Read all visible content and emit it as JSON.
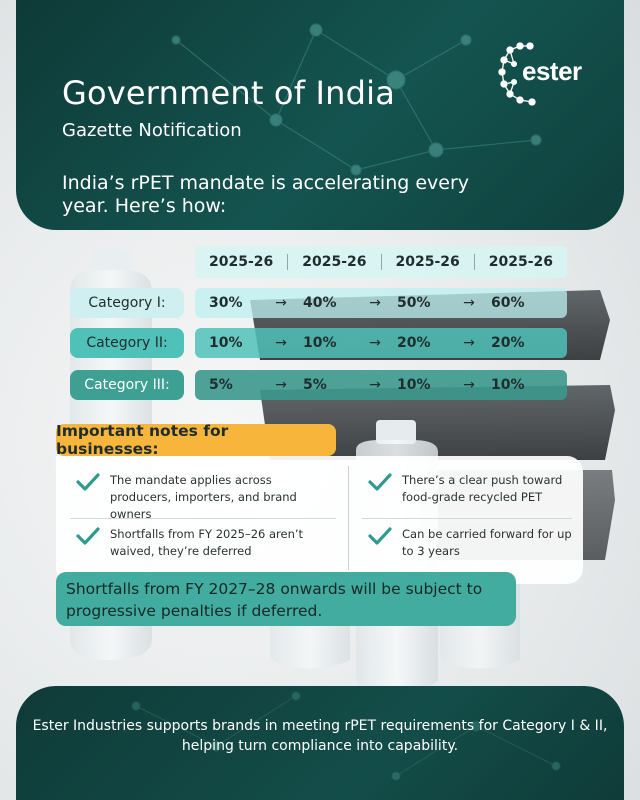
{
  "header": {
    "title": "Government of India",
    "subtitle": "Gazette Notification",
    "intro": "India’s rPET mandate is accelerating every year. Here’s how:",
    "logo_text": "ester"
  },
  "table": {
    "years": [
      "2025-26",
      "2025-26",
      "2025-26",
      "2025-26"
    ],
    "arrow": "→",
    "rows": [
      {
        "label": "Category I:",
        "values": [
          "30%",
          "40%",
          "50%",
          "60%"
        ]
      },
      {
        "label": "Category II:",
        "values": [
          "10%",
          "10%",
          "20%",
          "20%"
        ]
      },
      {
        "label": "Category III:",
        "values": [
          "5%",
          "5%",
          "10%",
          "10%"
        ]
      }
    ]
  },
  "notes": {
    "heading": "Important notes for businesses:",
    "items": [
      "The mandate applies across producers, importers, and brand owners",
      "There’s a clear push toward food-grade recycled PET",
      "Shortfalls from FY 2025–26 aren’t waived, they’re deferred",
      "Can be carried forward for up to 3 years"
    ],
    "penalty": "Shortfalls from FY 2027–28 onwards will be subject to progressive penalties if deferred."
  },
  "footer": {
    "text": "Ester Industries supports brands in meeting rPET requirements for Category I & II, helping turn compliance into capability."
  },
  "colors": {
    "header_bg": "#145450",
    "accent_teal": "#4fc1b8",
    "dark_teal": "#3e9f93",
    "notes_yellow": "#f7b53b",
    "check_teal": "#2f9a8e"
  },
  "icons": [
    "ester-logo-icon",
    "check-icon"
  ]
}
